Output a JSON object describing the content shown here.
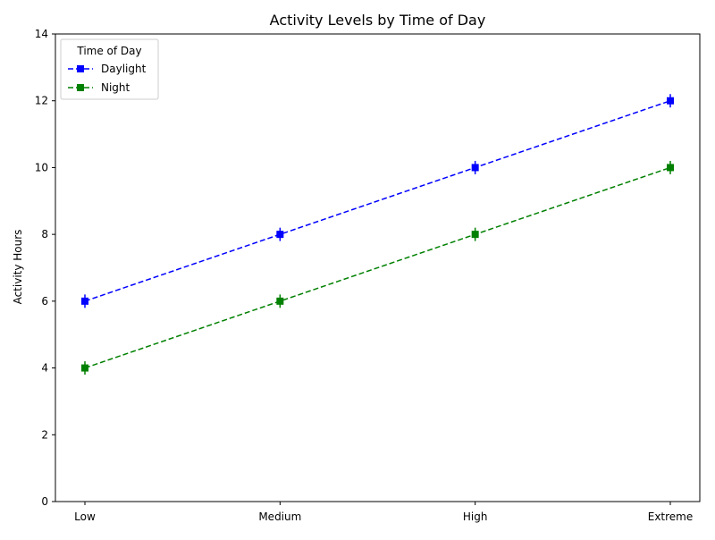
{
  "chart_data": {
    "type": "line",
    "title": "Activity Levels by Time of Day",
    "xlabel": "",
    "ylabel": "Activity Hours",
    "categories": [
      "Low",
      "Medium",
      "High",
      "Extreme"
    ],
    "ylim": [
      0,
      14
    ],
    "yticks": [
      0,
      2,
      4,
      6,
      8,
      10,
      12,
      14
    ],
    "grid": false,
    "legend": {
      "title": "Time of Day",
      "placement": "top-left"
    },
    "series": [
      {
        "name": "Daylight",
        "values": [
          6,
          8,
          10,
          12
        ],
        "error": 0.2,
        "color": "#0000ff",
        "linestyle": "dashed",
        "marker": "square"
      },
      {
        "name": "Night",
        "values": [
          4,
          6,
          8,
          10
        ],
        "error": 0.2,
        "color": "#008000",
        "linestyle": "dashed",
        "marker": "square"
      }
    ]
  }
}
